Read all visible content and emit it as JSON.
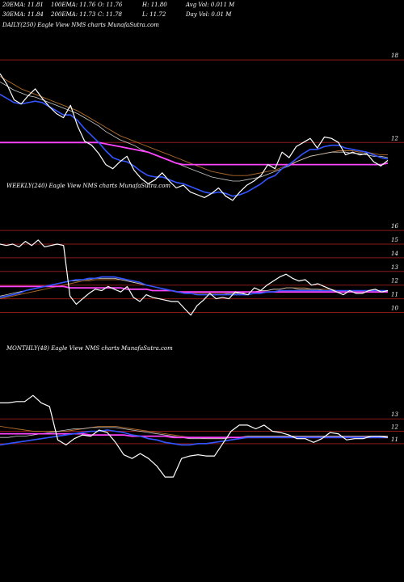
{
  "header": {
    "row1": [
      "20EMA: 11.81",
      "100EMA: 11.76",
      "O: 11.76",
      "H: 11.80",
      "Avg Vol: 0.011 M"
    ],
    "row2": [
      "30EMA: 11.84",
      "200EMA: 11.73",
      "C: 11.78",
      "L: 11.72",
      "Day Vol: 0.01 M"
    ]
  },
  "colors": {
    "background": "#000000",
    "price": "#ffffff",
    "ema_fast": "#3355ff",
    "ema_slow": "#ff44ff",
    "ema_brown": "#b06a2a",
    "ema_gray": "#cccccc",
    "grid": "#8b1a1a"
  },
  "chart_data": [
    {
      "type": "line",
      "panel": "daily",
      "label": "DAILY(250) Eagle  View  NMS charts MunafaSutra.com",
      "yticks": [
        18,
        12
      ],
      "ylim": [
        6.5,
        20
      ],
      "x_count": 250,
      "series": [
        {
          "key": "price",
          "values": [
            17.0,
            16.2,
            15.1,
            14.8,
            15.4,
            15.9,
            15.2,
            14.6,
            14.1,
            13.8,
            14.7,
            13.2,
            12.1,
            11.8,
            11.2,
            10.4,
            10.1,
            10.6,
            11.0,
            10.0,
            9.4,
            9.0,
            9.3,
            9.8,
            9.2,
            8.7,
            8.9,
            8.4,
            8.2,
            8.0,
            8.3,
            8.7,
            8.1,
            7.8,
            8.4,
            8.9,
            9.2,
            9.6,
            10.4,
            10.1,
            11.3,
            10.9,
            11.7,
            12.0,
            12.3,
            11.6,
            12.4,
            12.3,
            12.0,
            11.1,
            11.3,
            11.1,
            11.2,
            10.6,
            10.3,
            10.7
          ]
        },
        {
          "key": "ema_fast",
          "values": [
            15.5,
            15.2,
            14.9,
            14.8,
            14.9,
            15.0,
            14.9,
            14.6,
            14.3,
            14.0,
            14.0,
            13.6,
            13.0,
            12.5,
            12.0,
            11.4,
            10.9,
            10.7,
            10.6,
            10.3,
            9.9,
            9.6,
            9.5,
            9.5,
            9.3,
            9.1,
            9.0,
            8.8,
            8.6,
            8.4,
            8.3,
            8.4,
            8.3,
            8.1,
            8.2,
            8.4,
            8.7,
            9.0,
            9.4,
            9.6,
            10.1,
            10.4,
            10.8,
            11.2,
            11.5,
            11.5,
            11.7,
            11.8,
            11.8,
            11.6,
            11.5,
            11.4,
            11.3,
            11.1,
            10.9,
            10.8
          ]
        },
        {
          "key": "ema_slow",
          "values": [
            12.0,
            12.0,
            12.0,
            12.0,
            12.0,
            12.0,
            12.0,
            12.0,
            12.0,
            12.0,
            12.0,
            12.0,
            12.0,
            12.0,
            12.0,
            11.9,
            11.8,
            11.7,
            11.6,
            11.5,
            11.4,
            11.3,
            11.1,
            10.9,
            10.7,
            10.5,
            10.4,
            10.4,
            10.4,
            10.4,
            10.4,
            10.4,
            10.4,
            10.4,
            10.4,
            10.4,
            10.4,
            10.4,
            10.4,
            10.4,
            10.4,
            10.4,
            10.4,
            10.4,
            10.4,
            10.4,
            10.4,
            10.4,
            10.4,
            10.4,
            10.4,
            10.4,
            10.4,
            10.4,
            10.4,
            10.5
          ]
        },
        {
          "key": "ema_brown",
          "values": [
            16.8,
            16.5,
            16.2,
            15.9,
            15.7,
            15.5,
            15.3,
            15.1,
            14.9,
            14.7,
            14.5,
            14.3,
            14.0,
            13.7,
            13.4,
            13.1,
            12.8,
            12.5,
            12.3,
            12.1,
            11.9,
            11.7,
            11.5,
            11.3,
            11.1,
            10.9,
            10.7,
            10.5,
            10.3,
            10.1,
            9.9,
            9.8,
            9.7,
            9.6,
            9.6,
            9.6,
            9.7,
            9.8,
            9.9,
            10.0,
            10.2,
            10.4,
            10.6,
            10.8,
            11.0,
            11.1,
            11.2,
            11.3,
            11.4,
            11.4,
            11.4,
            11.3,
            11.3,
            11.2,
            11.1,
            11.1
          ]
        },
        {
          "key": "ema_gray",
          "values": [
            16.4,
            16.1,
            15.8,
            15.6,
            15.4,
            15.3,
            15.1,
            14.9,
            14.7,
            14.5,
            14.3,
            14.1,
            13.8,
            13.5,
            13.2,
            12.8,
            12.5,
            12.2,
            12.0,
            11.8,
            11.5,
            11.3,
            11.1,
            10.9,
            10.7,
            10.5,
            10.3,
            10.1,
            9.9,
            9.7,
            9.5,
            9.4,
            9.3,
            9.2,
            9.2,
            9.3,
            9.4,
            9.5,
            9.7,
            9.9,
            10.1,
            10.3,
            10.6,
            10.8,
            11.0,
            11.1,
            11.2,
            11.3,
            11.3,
            11.3,
            11.2,
            11.2,
            11.1,
            11.0,
            11.0,
            10.9
          ]
        }
      ]
    },
    {
      "type": "line",
      "panel": "weekly",
      "label": "WEEKLY(240) Eagle  View  NMS charts MunafaSutra.com",
      "yticks": [
        16,
        15,
        14,
        13,
        12,
        11,
        10
      ],
      "ylim": [
        9.5,
        16.3
      ],
      "x_count": 240,
      "series": [
        {
          "key": "price",
          "values": [
            15.0,
            14.9,
            15.0,
            14.8,
            15.2,
            14.9,
            15.3,
            14.8,
            14.9,
            15.0,
            14.9,
            11.2,
            10.6,
            11.0,
            11.4,
            11.7,
            11.6,
            11.9,
            11.7,
            11.5,
            11.9,
            11.1,
            10.8,
            11.3,
            11.1,
            11.0,
            10.9,
            10.8,
            10.8,
            10.3,
            9.8,
            10.5,
            10.9,
            11.4,
            11.0,
            11.1,
            11.0,
            11.5,
            11.4,
            11.3,
            11.8,
            11.6,
            12.0,
            12.3,
            12.6,
            12.8,
            12.5,
            12.3,
            12.4,
            12.0,
            12.1,
            11.9,
            11.7,
            11.5,
            11.3,
            11.6,
            11.4,
            11.4,
            11.6,
            11.7,
            11.5,
            11.6
          ]
        },
        {
          "key": "ema_fast",
          "values": [
            11.1,
            11.2,
            11.3,
            11.4,
            11.6,
            11.7,
            11.8,
            11.9,
            12.0,
            12.1,
            12.2,
            12.3,
            12.4,
            12.4,
            12.5,
            12.5,
            12.6,
            12.6,
            12.6,
            12.5,
            12.4,
            12.3,
            12.2,
            12.0,
            11.9,
            11.8,
            11.7,
            11.6,
            11.5,
            11.4,
            11.4,
            11.3,
            11.3,
            11.3,
            11.3,
            11.3,
            11.3,
            11.3,
            11.3,
            11.3,
            11.4,
            11.4,
            11.5,
            11.5,
            11.6,
            11.6,
            11.6,
            11.6,
            11.6,
            11.6,
            11.6,
            11.6,
            11.6,
            11.6,
            11.6,
            11.6,
            11.6,
            11.6,
            11.6,
            11.6,
            11.6,
            11.6
          ]
        },
        {
          "key": "ema_slow",
          "values": [
            11.9,
            11.9,
            11.9,
            11.9,
            11.9,
            11.9,
            11.9,
            11.9,
            11.9,
            11.9,
            11.9,
            11.8,
            11.8,
            11.8,
            11.8,
            11.8,
            11.8,
            11.8,
            11.8,
            11.8,
            11.7,
            11.7,
            11.7,
            11.7,
            11.6,
            11.6,
            11.6,
            11.6,
            11.5,
            11.5,
            11.5,
            11.5,
            11.5,
            11.5,
            11.5,
            11.5,
            11.5,
            11.5,
            11.5,
            11.5,
            11.5,
            11.5,
            11.5,
            11.5,
            11.5,
            11.5,
            11.5,
            11.5,
            11.5,
            11.5,
            11.5,
            11.5,
            11.5,
            11.5,
            11.5,
            11.5,
            11.5,
            11.5,
            11.5,
            11.5,
            11.5,
            11.5
          ]
        },
        {
          "key": "ema_brown",
          "values": [
            11.0,
            11.1,
            11.2,
            11.3,
            11.4,
            11.5,
            11.6,
            11.7,
            11.8,
            11.9,
            12.0,
            12.1,
            12.2,
            12.3,
            12.3,
            12.4,
            12.4,
            12.4,
            12.4,
            12.4,
            12.3,
            12.2,
            12.1,
            12.0,
            11.9,
            11.8,
            11.7,
            11.6,
            11.5,
            11.5,
            11.4,
            11.4,
            11.4,
            11.4,
            11.4,
            11.4,
            11.4,
            11.4,
            11.5,
            11.5,
            11.5,
            11.6,
            11.6,
            11.7,
            11.7,
            11.8,
            11.8,
            11.8,
            11.8,
            11.7,
            11.7,
            11.7,
            11.7,
            11.6,
            11.6,
            11.6,
            11.6,
            11.6,
            11.6,
            11.6,
            11.6,
            11.6
          ]
        },
        {
          "key": "ema_gray",
          "values": [
            11.2,
            11.3,
            11.4,
            11.5,
            11.6,
            11.7,
            11.8,
            11.9,
            12.0,
            12.1,
            12.2,
            12.3,
            12.3,
            12.4,
            12.4,
            12.5,
            12.5,
            12.5,
            12.5,
            12.4,
            12.3,
            12.2,
            12.1,
            12.0,
            11.9,
            11.8,
            11.7,
            11.6,
            11.5,
            11.4,
            11.4,
            11.3,
            11.3,
            11.3,
            11.3,
            11.3,
            11.4,
            11.4,
            11.4,
            11.5,
            11.5,
            11.6,
            11.6,
            11.7,
            11.7,
            11.8,
            11.8,
            11.7,
            11.7,
            11.7,
            11.7,
            11.6,
            11.6,
            11.6,
            11.6,
            11.6,
            11.6,
            11.6,
            11.6,
            11.6,
            11.6,
            11.6
          ]
        }
      ]
    },
    {
      "type": "line",
      "panel": "monthly",
      "label": "MONTHLY(48) Eagle  View  NMS charts MunafaSutra.com",
      "yticks": [
        13,
        12,
        11
      ],
      "ylim": [
        7.0,
        15.5
      ],
      "x_count": 48,
      "series": [
        {
          "key": "price",
          "values": [
            14.3,
            14.3,
            14.4,
            14.4,
            14.9,
            14.3,
            14.0,
            11.3,
            10.9,
            11.4,
            11.7,
            11.6,
            12.1,
            11.9,
            11.1,
            10.1,
            9.8,
            10.2,
            9.8,
            9.2,
            8.3,
            8.3,
            9.8,
            10.0,
            10.1,
            10.0,
            10.0,
            11.0,
            12.0,
            12.5,
            12.5,
            12.2,
            12.5,
            12.0,
            11.9,
            11.7,
            11.4,
            11.4,
            11.1,
            11.4,
            11.9,
            11.8,
            11.3,
            11.4,
            11.4,
            11.6,
            11.6,
            11.5
          ]
        },
        {
          "key": "ema_fast",
          "values": [
            10.9,
            11.0,
            11.1,
            11.2,
            11.3,
            11.4,
            11.5,
            11.6,
            11.7,
            11.8,
            11.9,
            12.0,
            12.0,
            12.1,
            12.0,
            11.9,
            11.7,
            11.6,
            11.4,
            11.3,
            11.1,
            11.0,
            10.9,
            10.9,
            11.0,
            11.0,
            11.1,
            11.2,
            11.3,
            11.4,
            11.5,
            11.5,
            11.5,
            11.5,
            11.5,
            11.5,
            11.5,
            11.5,
            11.5,
            11.5,
            11.5,
            11.5,
            11.5,
            11.5,
            11.5,
            11.5,
            11.5,
            11.5
          ]
        },
        {
          "key": "ema_slow",
          "values": [
            11.8,
            11.8,
            11.8,
            11.8,
            11.8,
            11.8,
            11.8,
            11.8,
            11.8,
            11.8,
            11.8,
            11.7,
            11.7,
            11.7,
            11.7,
            11.7,
            11.6,
            11.6,
            11.6,
            11.6,
            11.6,
            11.5,
            11.5,
            11.5,
            11.5,
            11.5,
            11.5,
            11.5,
            11.5,
            11.5,
            11.5,
            11.5,
            11.5,
            11.5,
            11.5,
            11.5,
            11.5,
            11.5,
            11.5,
            11.5,
            11.5,
            11.5,
            11.5,
            11.5,
            11.5,
            11.5,
            11.5,
            11.5
          ]
        },
        {
          "key": "ema_brown",
          "values": [
            12.4,
            12.3,
            12.2,
            12.1,
            12.0,
            12.0,
            12.0,
            12.0,
            12.0,
            12.1,
            12.2,
            12.3,
            12.4,
            12.4,
            12.4,
            12.3,
            12.2,
            12.1,
            12.0,
            11.9,
            11.8,
            11.7,
            11.6,
            11.5,
            11.5,
            11.4,
            11.4,
            11.4,
            11.5,
            11.5,
            11.6,
            11.6,
            11.6,
            11.6,
            11.6,
            11.6,
            11.6,
            11.6,
            11.6,
            11.6,
            11.6,
            11.6,
            11.6,
            11.6,
            11.6,
            11.6,
            11.6,
            11.6
          ]
        },
        {
          "key": "ema_gray",
          "values": [
            11.5,
            11.5,
            11.6,
            11.6,
            11.7,
            11.8,
            11.9,
            12.0,
            12.1,
            12.2,
            12.2,
            12.3,
            12.3,
            12.3,
            12.3,
            12.2,
            12.1,
            12.0,
            11.9,
            11.8,
            11.7,
            11.6,
            11.5,
            11.4,
            11.4,
            11.4,
            11.4,
            11.4,
            11.5,
            11.5,
            11.6,
            11.6,
            11.6,
            11.6,
            11.6,
            11.6,
            11.6,
            11.6,
            11.6,
            11.6,
            11.6,
            11.6,
            11.6,
            11.6,
            11.6,
            11.6,
            11.6,
            11.6
          ]
        }
      ]
    }
  ]
}
